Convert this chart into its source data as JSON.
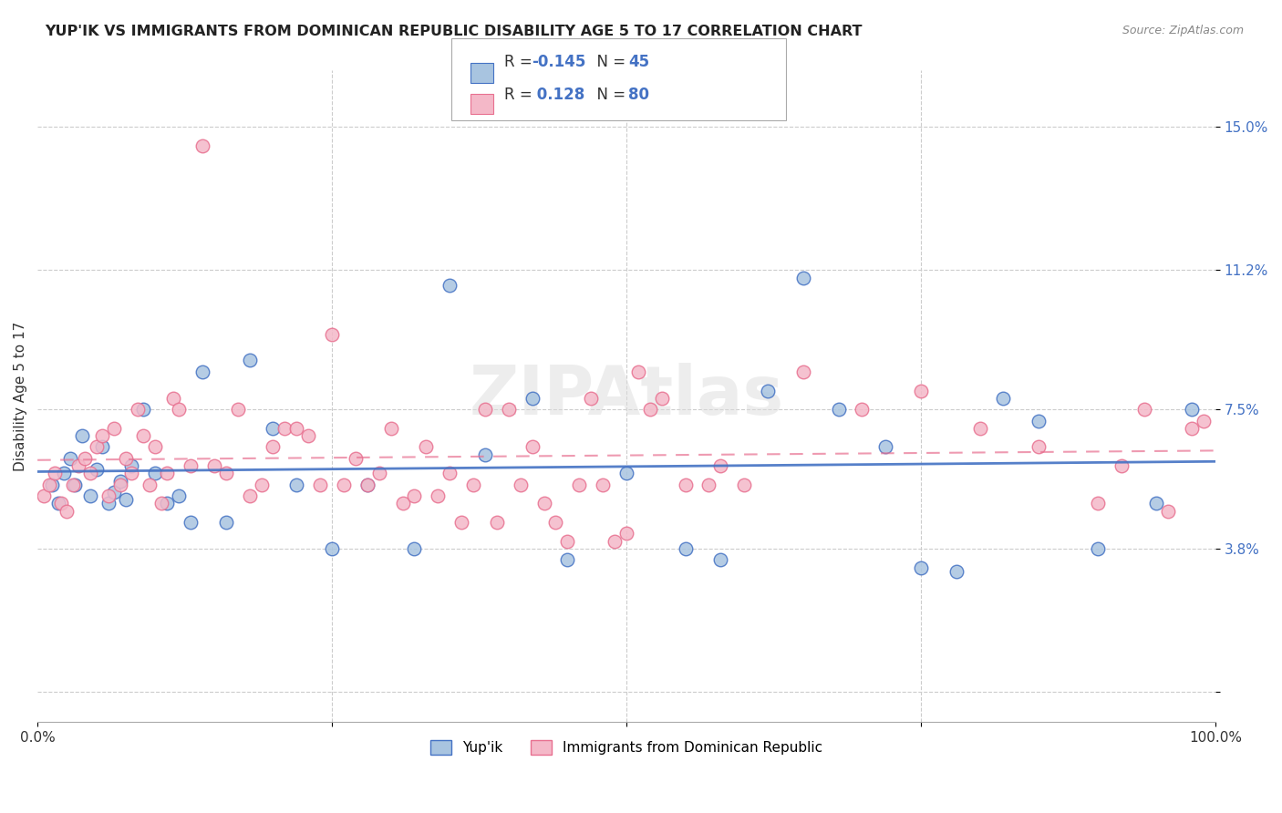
{
  "title": "YUP'IK VS IMMIGRANTS FROM DOMINICAN REPUBLIC DISABILITY AGE 5 TO 17 CORRELATION CHART",
  "source": "Source: ZipAtlas.com",
  "ylabel": "Disability Age 5 to 17",
  "xlim": [
    0,
    100
  ],
  "yticks": [
    0,
    3.8,
    7.5,
    11.2,
    15.0
  ],
  "yticklabels": [
    "",
    "3.8%",
    "7.5%",
    "11.2%",
    "15.0%"
  ],
  "blue_R": "-0.145",
  "blue_N": "45",
  "pink_R": "0.128",
  "pink_N": "80",
  "blue_color": "#a8c4e0",
  "pink_color": "#f4b8c8",
  "blue_edge_color": "#4472c4",
  "pink_edge_color": "#e87090",
  "blue_line_color": "#4472c4",
  "pink_line_color": "#e87090",
  "background_color": "#ffffff",
  "blue_scatter_x": [
    1.2,
    1.8,
    2.2,
    2.8,
    3.2,
    3.8,
    4.5,
    5.0,
    5.5,
    6.0,
    6.5,
    7.0,
    7.5,
    8.0,
    9.0,
    10.0,
    11.0,
    12.0,
    13.0,
    14.0,
    16.0,
    18.0,
    20.0,
    22.0,
    25.0,
    28.0,
    32.0,
    35.0,
    38.0,
    42.0,
    45.0,
    50.0,
    55.0,
    58.0,
    62.0,
    65.0,
    68.0,
    72.0,
    75.0,
    78.0,
    82.0,
    85.0,
    90.0,
    95.0,
    98.0
  ],
  "blue_scatter_y": [
    5.5,
    5.0,
    5.8,
    6.2,
    5.5,
    6.8,
    5.2,
    5.9,
    6.5,
    5.0,
    5.3,
    5.6,
    5.1,
    6.0,
    7.5,
    5.8,
    5.0,
    5.2,
    4.5,
    8.5,
    4.5,
    8.8,
    7.0,
    5.5,
    3.8,
    5.5,
    3.8,
    10.8,
    6.3,
    7.8,
    3.5,
    5.8,
    3.8,
    3.5,
    8.0,
    11.0,
    7.5,
    6.5,
    3.3,
    3.2,
    7.8,
    7.2,
    3.8,
    5.0,
    7.5
  ],
  "pink_scatter_x": [
    0.5,
    1.0,
    1.5,
    2.0,
    2.5,
    3.0,
    3.5,
    4.0,
    4.5,
    5.0,
    5.5,
    6.0,
    6.5,
    7.0,
    7.5,
    8.0,
    8.5,
    9.0,
    9.5,
    10.0,
    10.5,
    11.0,
    11.5,
    12.0,
    13.0,
    14.0,
    15.0,
    16.0,
    17.0,
    18.0,
    19.0,
    20.0,
    21.0,
    22.0,
    23.0,
    24.0,
    25.0,
    26.0,
    27.0,
    28.0,
    29.0,
    30.0,
    31.0,
    32.0,
    33.0,
    34.0,
    35.0,
    36.0,
    37.0,
    38.0,
    39.0,
    40.0,
    41.0,
    42.0,
    43.0,
    44.0,
    45.0,
    46.0,
    47.0,
    48.0,
    49.0,
    50.0,
    51.0,
    52.0,
    53.0,
    55.0,
    57.0,
    58.0,
    60.0,
    65.0,
    70.0,
    75.0,
    80.0,
    85.0,
    90.0,
    92.0,
    94.0,
    96.0,
    98.0,
    99.0
  ],
  "pink_scatter_y": [
    5.2,
    5.5,
    5.8,
    5.0,
    4.8,
    5.5,
    6.0,
    6.2,
    5.8,
    6.5,
    6.8,
    5.2,
    7.0,
    5.5,
    6.2,
    5.8,
    7.5,
    6.8,
    5.5,
    6.5,
    5.0,
    5.8,
    7.8,
    7.5,
    6.0,
    14.5,
    6.0,
    5.8,
    7.5,
    5.2,
    5.5,
    6.5,
    7.0,
    7.0,
    6.8,
    5.5,
    9.5,
    5.5,
    6.2,
    5.5,
    5.8,
    7.0,
    5.0,
    5.2,
    6.5,
    5.2,
    5.8,
    4.5,
    5.5,
    7.5,
    4.5,
    7.5,
    5.5,
    6.5,
    5.0,
    4.5,
    4.0,
    5.5,
    7.8,
    5.5,
    4.0,
    4.2,
    8.5,
    7.5,
    7.8,
    5.5,
    5.5,
    6.0,
    5.5,
    8.5,
    7.5,
    8.0,
    7.0,
    6.5,
    5.0,
    6.0,
    7.5,
    4.8,
    7.0,
    7.2
  ]
}
